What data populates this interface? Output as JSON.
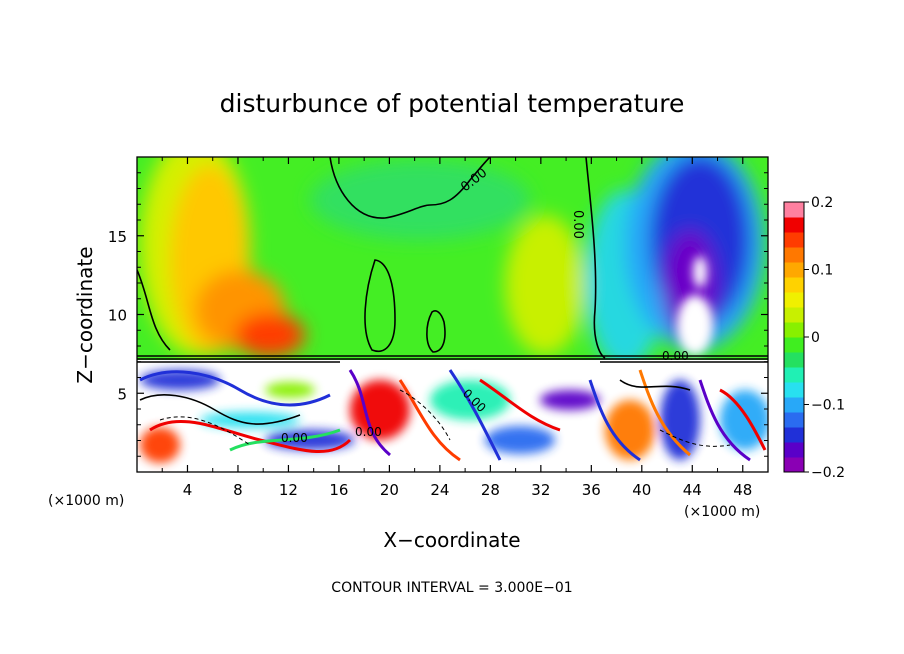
{
  "chart_data": {
    "type": "heatmap",
    "title": "disturbunce of potential temperature",
    "xlabel": "X−coordinate",
    "ylabel": "Z−coordinate",
    "x_unit_left": "(×1000 m)",
    "x_unit_right": "(×1000 m)",
    "xlim": [
      0,
      50
    ],
    "ylim": [
      0,
      20
    ],
    "x_ticks": [
      4,
      8,
      12,
      16,
      20,
      24,
      28,
      32,
      36,
      40,
      44,
      48
    ],
    "x_tick_labels": [
      "4",
      "8",
      "12",
      "16",
      "20",
      "24",
      "28",
      "32",
      "36",
      "40",
      "44",
      "48"
    ],
    "y_ticks": [
      5,
      10,
      15
    ],
    "y_tick_labels": [
      "5",
      "10",
      "15"
    ],
    "contour_labels": [
      "0.00",
      "0.00",
      "0.00",
      "0.00",
      "0.00",
      "0.00"
    ],
    "contour_interval_label": "CONTOUR INTERVAL = 3.000E−01",
    "colorbar": {
      "min": -0.2,
      "max": 0.2,
      "ticks": [
        0.2,
        0.1,
        0,
        -0.1,
        -0.2
      ],
      "tick_labels": [
        "0.2",
        "0.1",
        "0",
        "−0.1",
        "−0.2"
      ],
      "colors": [
        "#8a00b4",
        "#5a00c8",
        "#2030d8",
        "#2a6cf0",
        "#28a8f8",
        "#28e0f0",
        "#20f0b4",
        "#24e060",
        "#40ee20",
        "#88f000",
        "#c8f000",
        "#f0f000",
        "#ffd200",
        "#ffa800",
        "#ff7800",
        "#ff3c00",
        "#f00000",
        "#ff80a0"
      ]
    }
  }
}
